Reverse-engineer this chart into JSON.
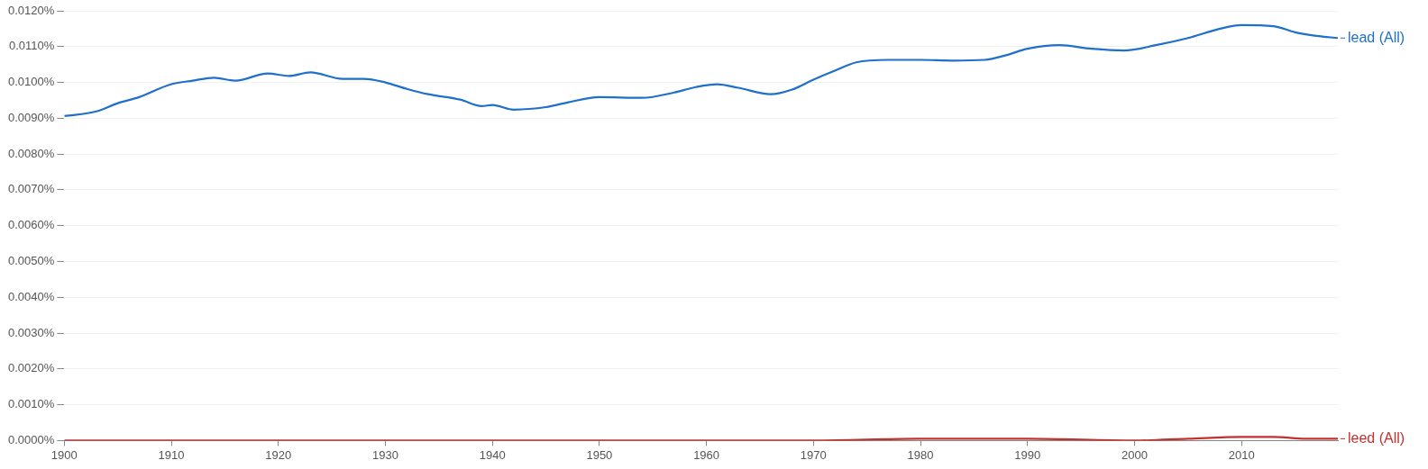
{
  "chart_data": {
    "type": "line",
    "xlim": [
      1900,
      2019
    ],
    "xticks": [
      1900,
      1910,
      1920,
      1930,
      1940,
      1950,
      1960,
      1970,
      1980,
      1990,
      2000,
      2010
    ],
    "ylim": [
      0,
      0.012
    ],
    "yticks": [
      {
        "value": 0,
        "label": "0.0000%"
      },
      {
        "value": 0.001,
        "label": "0.0010%"
      },
      {
        "value": 0.002,
        "label": "0.0020%"
      },
      {
        "value": 0.003,
        "label": "0.0030%"
      },
      {
        "value": 0.004,
        "label": "0.0040%"
      },
      {
        "value": 0.005,
        "label": "0.0050%"
      },
      {
        "value": 0.006,
        "label": "0.0060%"
      },
      {
        "value": 0.007,
        "label": "0.0070%"
      },
      {
        "value": 0.008,
        "label": "0.0080%"
      },
      {
        "value": 0.009,
        "label": "0.0090%"
      },
      {
        "value": 0.01,
        "label": "0.0100%"
      },
      {
        "value": 0.011,
        "label": "0.0110%"
      },
      {
        "value": 0.012,
        "label": "0.0120%"
      }
    ],
    "grid": "y",
    "legend": "right",
    "marker": "none",
    "line_style": "solid",
    "series": [
      {
        "name": "lead (All)",
        "color": "#1f6fcc",
        "x": [
          1900,
          1903,
          1905,
          1907,
          1910,
          1912,
          1914,
          1916,
          1919,
          1921,
          1923,
          1926,
          1928,
          1930,
          1932,
          1934,
          1937,
          1939,
          1940,
          1942,
          1945,
          1947,
          1950,
          1954,
          1957,
          1959,
          1961,
          1963,
          1966,
          1968,
          1970,
          1972,
          1974,
          1977,
          1980,
          1983,
          1986,
          1988,
          1990,
          1993,
          1996,
          1999,
          2002,
          2005,
          2008,
          2010,
          2013,
          2015,
          2017,
          2019
        ],
        "values": [
          0.00906,
          0.00919,
          0.00942,
          0.00959,
          0.00995,
          0.01005,
          0.01013,
          0.01005,
          0.01025,
          0.01018,
          0.01028,
          0.0101,
          0.0101,
          0.01,
          0.00982,
          0.00967,
          0.00952,
          0.00934,
          0.00937,
          0.00924,
          0.00931,
          0.00944,
          0.00959,
          0.00957,
          0.00972,
          0.00987,
          0.00995,
          0.00985,
          0.00967,
          0.0098,
          0.01008,
          0.01033,
          0.01056,
          0.01063,
          0.01063,
          0.01061,
          0.01063,
          0.01076,
          0.01094,
          0.01104,
          0.01094,
          0.01089,
          0.01104,
          0.01124,
          0.0115,
          0.0116,
          0.01157,
          0.0114,
          0.0113,
          0.01124
        ]
      },
      {
        "name": "leed (All)",
        "color": "#c62f2f",
        "x": [
          1900,
          1920,
          1940,
          1960,
          1970,
          1980,
          1990,
          2000,
          2005,
          2010,
          2013,
          2016,
          2019
        ],
        "values": [
          0,
          0,
          0,
          0,
          0,
          5e-05,
          5e-05,
          0,
          5e-05,
          0.0001,
          0.0001,
          5e-05,
          5e-05
        ]
      }
    ]
  }
}
